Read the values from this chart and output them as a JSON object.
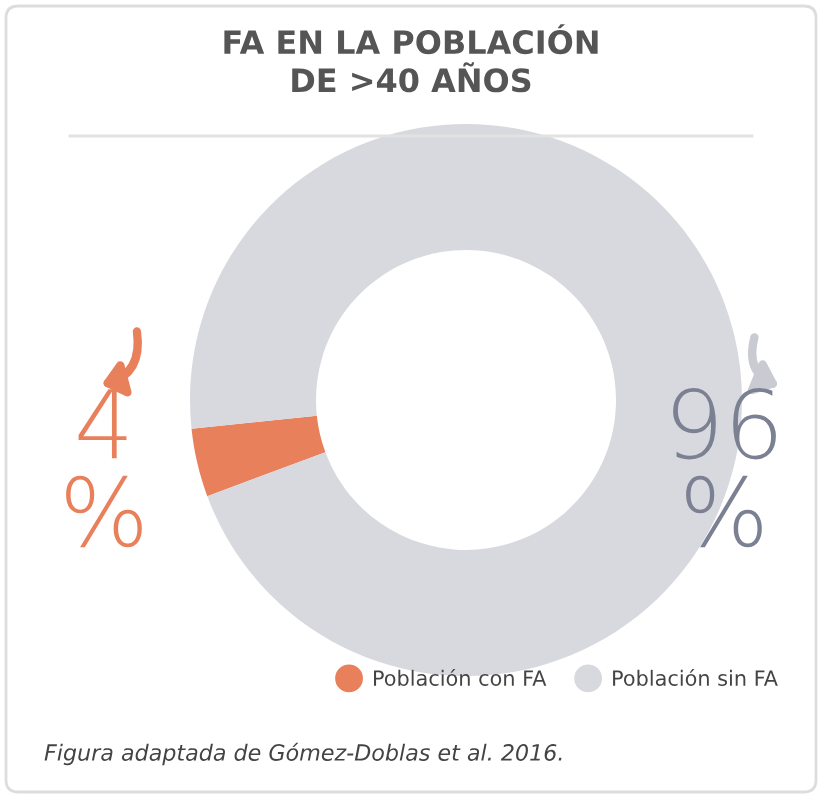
{
  "chart_data": {
    "type": "donut",
    "title": "FA EN LA POBLACIÓN\nDE >40 AÑOS",
    "categories": [
      "Población con FA",
      "Población sin FA"
    ],
    "values": [
      4,
      96
    ],
    "colors": [
      "#e9805c",
      "#d8d9df"
    ],
    "value_labels": [
      "4\n%",
      "96\n%"
    ],
    "legend": "bottom right",
    "annotations": [
      "Figura adaptada de Gómez-Doblas et al. 2016."
    ]
  }
}
